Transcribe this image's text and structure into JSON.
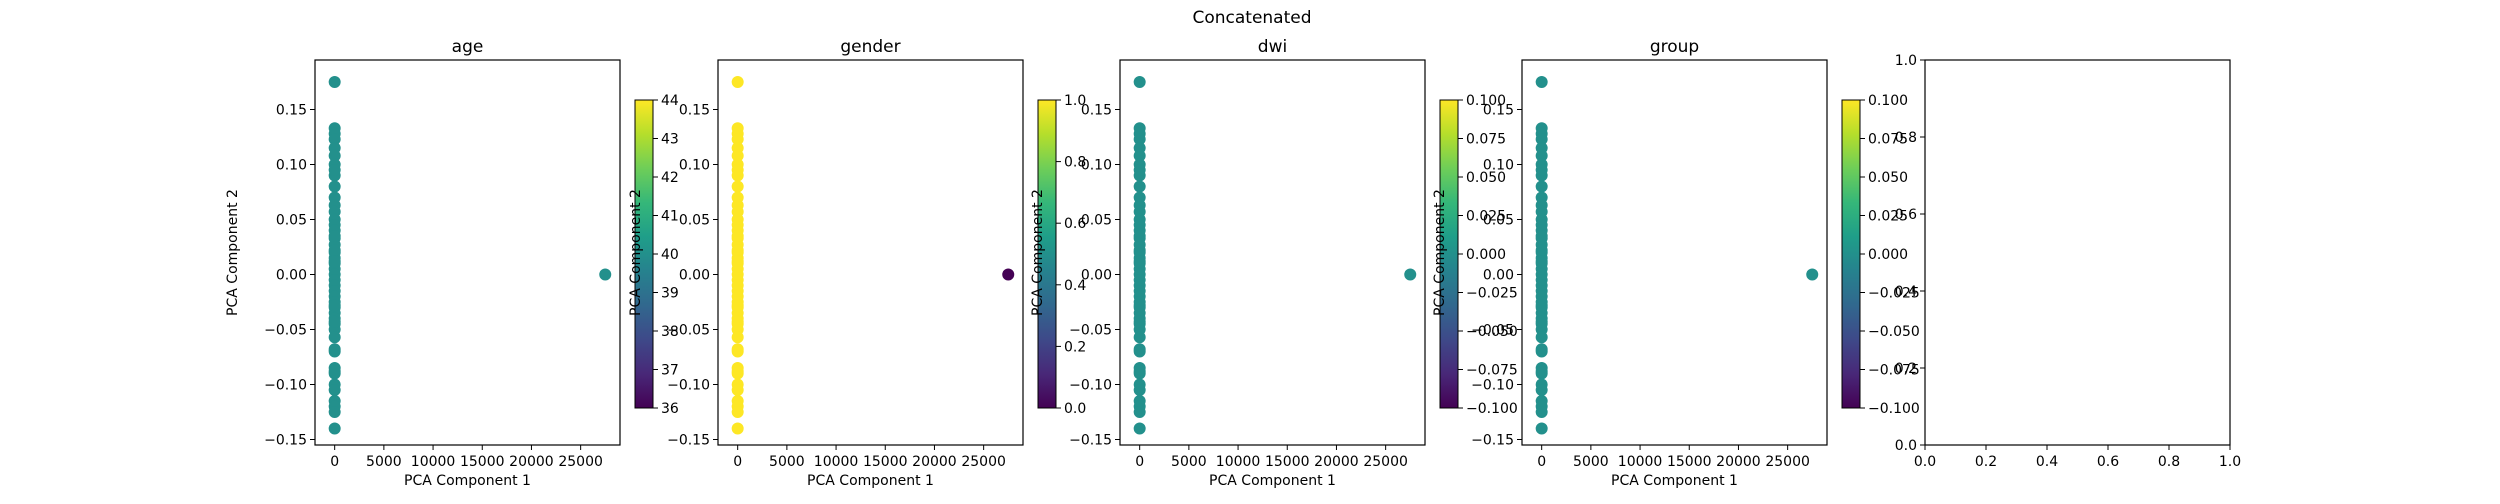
{
  "figure": {
    "title": "Concatenated",
    "colormap": [
      "#440154",
      "#482878",
      "#3e4989",
      "#31688e",
      "#26828e",
      "#1f9e89",
      "#35b779",
      "#6ece58",
      "#b5de2b",
      "#fde725"
    ]
  },
  "chart_data": [
    {
      "type": "scatter",
      "title": "age",
      "xlabel": "PCA Component 1",
      "ylabel": "PCA Component 2",
      "xlim": [
        -2000,
        29000
      ],
      "ylim": [
        -0.155,
        0.195
      ],
      "xticks": [
        0,
        5000,
        10000,
        15000,
        20000,
        25000
      ],
      "xtick_labels": [
        "0",
        "5000",
        "10000",
        "15000",
        "20000",
        "25000"
      ],
      "yticks": [
        -0.15,
        -0.1,
        -0.05,
        0.0,
        0.05,
        0.1,
        0.15
      ],
      "ytick_labels": [
        "−0.15",
        "−0.10",
        "−0.05",
        "0.00",
        "0.05",
        "0.10",
        "0.15"
      ],
      "points_x": [
        0,
        0,
        0,
        0,
        0,
        0,
        0,
        0,
        0,
        0,
        0,
        0,
        0,
        0,
        0,
        0,
        0,
        0,
        0,
        0,
        0,
        0,
        0,
        0,
        0,
        0,
        0,
        0,
        0,
        0,
        0,
        0,
        0,
        0,
        0,
        0,
        0,
        0,
        0,
        0,
        0,
        0,
        0,
        0,
        0,
        0,
        0,
        0,
        0,
        0,
        27500
      ],
      "points_y": [
        0.175,
        0.133,
        0.128,
        0.123,
        0.115,
        0.108,
        0.1,
        0.09,
        0.08,
        0.07,
        0.063,
        0.057,
        0.05,
        0.045,
        0.04,
        0.033,
        0.027,
        0.02,
        0.015,
        0.01,
        0.005,
        0.0,
        -0.005,
        -0.01,
        -0.015,
        -0.02,
        -0.025,
        -0.03,
        -0.035,
        -0.04,
        -0.045,
        -0.05,
        -0.057,
        -0.07,
        -0.085,
        -0.09,
        -0.1,
        -0.105,
        -0.115,
        -0.12,
        -0.125,
        -0.14,
        0.022,
        -0.068,
        0.012,
        -0.028,
        0.035,
        -0.043,
        0.095,
        -0.088,
        0.0
      ],
      "point_values": [
        40,
        40,
        40,
        40,
        40,
        40,
        40,
        40,
        40,
        40,
        40,
        40,
        40,
        40,
        40,
        40,
        40,
        40,
        40,
        40,
        40,
        40,
        40,
        40,
        40,
        40,
        40,
        40,
        40,
        40,
        40,
        40,
        40,
        40,
        40,
        40,
        40,
        40,
        40,
        40,
        40,
        40,
        40,
        40,
        40,
        40,
        40,
        40,
        40,
        40,
        40
      ],
      "colorbar": {
        "range": [
          36,
          44
        ],
        "ticks": [
          36,
          37,
          38,
          39,
          40,
          41,
          42,
          43,
          44
        ],
        "tick_labels": [
          "36",
          "37",
          "38",
          "39",
          "40",
          "41",
          "42",
          "43",
          "44"
        ]
      }
    },
    {
      "type": "scatter",
      "title": "gender",
      "xlabel": "PCA Component 1",
      "ylabel": "PCA Component 2",
      "xlim": [
        -2000,
        29000
      ],
      "ylim": [
        -0.155,
        0.195
      ],
      "xticks": [
        0,
        5000,
        10000,
        15000,
        20000,
        25000
      ],
      "xtick_labels": [
        "0",
        "5000",
        "10000",
        "15000",
        "20000",
        "25000"
      ],
      "yticks": [
        -0.15,
        -0.1,
        -0.05,
        0.0,
        0.05,
        0.1,
        0.15
      ],
      "ytick_labels": [
        "−0.15",
        "−0.10",
        "−0.05",
        "0.00",
        "0.05",
        "0.10",
        "0.15"
      ],
      "points_x": [
        0,
        0,
        0,
        0,
        0,
        0,
        0,
        0,
        0,
        0,
        0,
        0,
        0,
        0,
        0,
        0,
        0,
        0,
        0,
        0,
        0,
        0,
        0,
        0,
        0,
        0,
        0,
        0,
        0,
        0,
        0,
        0,
        0,
        0,
        0,
        0,
        0,
        0,
        0,
        0,
        0,
        0,
        0,
        0,
        0,
        0,
        0,
        0,
        0,
        0,
        27500
      ],
      "points_y": [
        0.175,
        0.133,
        0.128,
        0.123,
        0.115,
        0.108,
        0.1,
        0.09,
        0.08,
        0.07,
        0.063,
        0.057,
        0.05,
        0.045,
        0.04,
        0.033,
        0.027,
        0.02,
        0.015,
        0.01,
        0.005,
        0.0,
        -0.005,
        -0.01,
        -0.015,
        -0.02,
        -0.025,
        -0.03,
        -0.035,
        -0.04,
        -0.045,
        -0.05,
        -0.057,
        -0.07,
        -0.085,
        -0.09,
        -0.1,
        -0.105,
        -0.115,
        -0.12,
        -0.125,
        -0.14,
        0.022,
        -0.068,
        0.012,
        -0.028,
        0.035,
        -0.043,
        0.095,
        -0.088,
        0.0
      ],
      "point_values": [
        1,
        1,
        1,
        1,
        1,
        1,
        1,
        1,
        1,
        1,
        1,
        1,
        1,
        1,
        1,
        1,
        1,
        1,
        1,
        1,
        1,
        1,
        1,
        1,
        1,
        1,
        1,
        1,
        1,
        1,
        1,
        1,
        1,
        1,
        1,
        1,
        1,
        1,
        1,
        1,
        1,
        1,
        1,
        1,
        1,
        1,
        1,
        1,
        1,
        1,
        0
      ],
      "colorbar": {
        "range": [
          0,
          1
        ],
        "ticks": [
          0,
          0.2,
          0.4,
          0.6,
          0.8,
          1.0
        ],
        "tick_labels": [
          "0.0",
          "0.2",
          "0.4",
          "0.6",
          "0.8",
          "1.0"
        ]
      }
    },
    {
      "type": "scatter",
      "title": "dwi",
      "xlabel": "PCA Component 1",
      "ylabel": "PCA Component 2",
      "xlim": [
        -2000,
        29000
      ],
      "ylim": [
        -0.155,
        0.195
      ],
      "xticks": [
        0,
        5000,
        10000,
        15000,
        20000,
        25000
      ],
      "xtick_labels": [
        "0",
        "5000",
        "10000",
        "15000",
        "20000",
        "25000"
      ],
      "yticks": [
        -0.15,
        -0.1,
        -0.05,
        0.0,
        0.05,
        0.1,
        0.15
      ],
      "ytick_labels": [
        "−0.15",
        "−0.10",
        "−0.05",
        "0.00",
        "0.05",
        "0.10",
        "0.15"
      ],
      "points_x": [
        0,
        0,
        0,
        0,
        0,
        0,
        0,
        0,
        0,
        0,
        0,
        0,
        0,
        0,
        0,
        0,
        0,
        0,
        0,
        0,
        0,
        0,
        0,
        0,
        0,
        0,
        0,
        0,
        0,
        0,
        0,
        0,
        0,
        0,
        0,
        0,
        0,
        0,
        0,
        0,
        0,
        0,
        0,
        0,
        0,
        0,
        0,
        0,
        0,
        0,
        27500
      ],
      "points_y": [
        0.175,
        0.133,
        0.128,
        0.123,
        0.115,
        0.108,
        0.1,
        0.09,
        0.08,
        0.07,
        0.063,
        0.057,
        0.05,
        0.045,
        0.04,
        0.033,
        0.027,
        0.02,
        0.015,
        0.01,
        0.005,
        0.0,
        -0.005,
        -0.01,
        -0.015,
        -0.02,
        -0.025,
        -0.03,
        -0.035,
        -0.04,
        -0.045,
        -0.05,
        -0.057,
        -0.07,
        -0.085,
        -0.09,
        -0.1,
        -0.105,
        -0.115,
        -0.12,
        -0.125,
        -0.14,
        0.022,
        -0.068,
        0.012,
        -0.028,
        0.035,
        -0.043,
        0.095,
        -0.088,
        0.0
      ],
      "point_values": [
        0,
        0,
        0,
        0,
        0,
        0,
        0,
        0,
        0,
        0,
        0,
        0,
        0,
        0,
        0,
        0,
        0,
        0,
        0,
        0,
        0,
        0,
        0,
        0,
        0,
        0,
        0,
        0,
        0,
        0,
        0,
        0,
        0,
        0,
        0,
        0,
        0,
        0,
        0,
        0,
        0,
        0,
        0,
        0,
        0,
        0,
        0,
        0,
        0,
        0,
        0
      ],
      "colorbar": {
        "range": [
          -0.1,
          0.1
        ],
        "ticks": [
          -0.1,
          -0.075,
          -0.05,
          -0.025,
          0.0,
          0.025,
          0.05,
          0.075,
          0.1
        ],
        "tick_labels": [
          "−0.100",
          "−0.075",
          "−0.050",
          "−0.025",
          "0.000",
          "0.025",
          "0.050",
          "0.075",
          "0.100"
        ]
      }
    },
    {
      "type": "scatter",
      "title": "group",
      "xlabel": "PCA Component 1",
      "ylabel": "PCA Component 2",
      "xlim": [
        -2000,
        29000
      ],
      "ylim": [
        -0.155,
        0.195
      ],
      "xticks": [
        0,
        5000,
        10000,
        15000,
        20000,
        25000
      ],
      "xtick_labels": [
        "0",
        "5000",
        "10000",
        "15000",
        "20000",
        "25000"
      ],
      "yticks": [
        -0.15,
        -0.1,
        -0.05,
        0.0,
        0.05,
        0.1,
        0.15
      ],
      "ytick_labels": [
        "−0.15",
        "−0.10",
        "−0.05",
        "0.00",
        "0.05",
        "0.10",
        "0.15"
      ],
      "points_x": [
        0,
        0,
        0,
        0,
        0,
        0,
        0,
        0,
        0,
        0,
        0,
        0,
        0,
        0,
        0,
        0,
        0,
        0,
        0,
        0,
        0,
        0,
        0,
        0,
        0,
        0,
        0,
        0,
        0,
        0,
        0,
        0,
        0,
        0,
        0,
        0,
        0,
        0,
        0,
        0,
        0,
        0,
        0,
        0,
        0,
        0,
        0,
        0,
        0,
        0,
        27500
      ],
      "points_y": [
        0.175,
        0.133,
        0.128,
        0.123,
        0.115,
        0.108,
        0.1,
        0.09,
        0.08,
        0.07,
        0.063,
        0.057,
        0.05,
        0.045,
        0.04,
        0.033,
        0.027,
        0.02,
        0.015,
        0.01,
        0.005,
        0.0,
        -0.005,
        -0.01,
        -0.015,
        -0.02,
        -0.025,
        -0.03,
        -0.035,
        -0.04,
        -0.045,
        -0.05,
        -0.057,
        -0.07,
        -0.085,
        -0.09,
        -0.1,
        -0.105,
        -0.115,
        -0.12,
        -0.125,
        -0.14,
        0.022,
        -0.068,
        0.012,
        -0.028,
        0.035,
        -0.043,
        0.095,
        -0.088,
        0.0
      ],
      "point_values": [
        0,
        0,
        0,
        0,
        0,
        0,
        0,
        0,
        0,
        0,
        0,
        0,
        0,
        0,
        0,
        0,
        0,
        0,
        0,
        0,
        0,
        0,
        0,
        0,
        0,
        0,
        0,
        0,
        0,
        0,
        0,
        0,
        0,
        0,
        0,
        0,
        0,
        0,
        0,
        0,
        0,
        0,
        0,
        0,
        0,
        0,
        0,
        0,
        0,
        0,
        0
      ],
      "colorbar": {
        "range": [
          -0.1,
          0.1
        ],
        "ticks": [
          -0.1,
          -0.075,
          -0.05,
          -0.025,
          0.0,
          0.025,
          0.05,
          0.075,
          0.1
        ],
        "tick_labels": [
          "−0.100",
          "−0.075",
          "−0.050",
          "−0.025",
          "0.000",
          "0.025",
          "0.050",
          "0.075",
          "0.100"
        ]
      }
    },
    {
      "type": "scatter",
      "title": "",
      "xlabel": "",
      "ylabel": "",
      "xlim": [
        0,
        1
      ],
      "ylim": [
        0,
        1
      ],
      "xticks": [
        0,
        0.2,
        0.4,
        0.6,
        0.8,
        1.0
      ],
      "xtick_labels": [
        "0.0",
        "0.2",
        "0.4",
        "0.6",
        "0.8",
        "1.0"
      ],
      "yticks": [
        0,
        0.2,
        0.4,
        0.6,
        0.8,
        1.0
      ],
      "ytick_labels": [
        "0.0",
        "0.2",
        "0.4",
        "0.6",
        "0.8",
        "1.0"
      ],
      "points_x": [],
      "points_y": [],
      "point_values": []
    }
  ]
}
